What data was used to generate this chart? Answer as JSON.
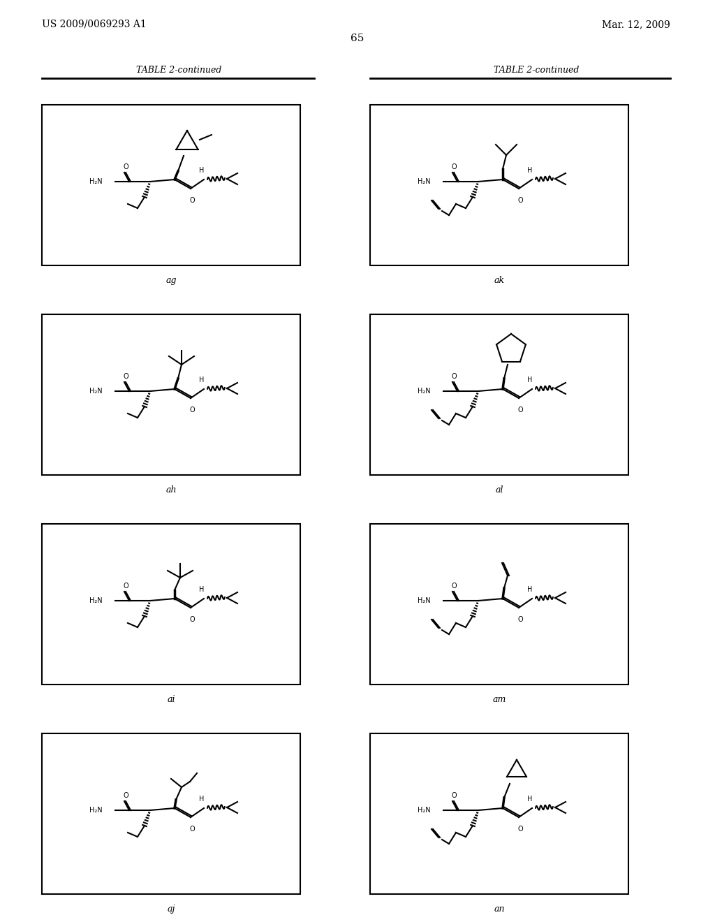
{
  "page_number": "65",
  "patent_number": "US 2009/0069293 A1",
  "patent_date": "Mar. 12, 2009",
  "table_header": "TABLE 2-continued",
  "background_color": "#ffffff",
  "text_color": "#000000",
  "compounds": [
    {
      "label": "ag",
      "col": 0,
      "row": 0
    },
    {
      "label": "ak",
      "col": 1,
      "row": 0
    },
    {
      "label": "ah",
      "col": 0,
      "row": 1
    },
    {
      "label": "al",
      "col": 1,
      "row": 1
    },
    {
      "label": "ai",
      "col": 0,
      "row": 2
    },
    {
      "label": "am",
      "col": 1,
      "row": 2
    },
    {
      "label": "aj",
      "col": 0,
      "row": 3
    },
    {
      "label": "an",
      "col": 1,
      "row": 3
    }
  ]
}
